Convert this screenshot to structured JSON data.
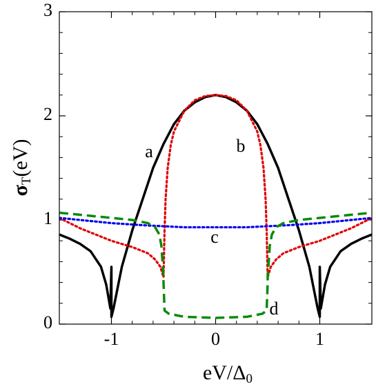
{
  "chart_data": {
    "type": "line",
    "x_label": {
      "text": "eV/Δ",
      "subscript": "0"
    },
    "y_label": {
      "symbol": "σ",
      "subscript": "T",
      "unit": "(eV)"
    },
    "xlim": [
      -1.5,
      1.5
    ],
    "ylim": [
      0,
      3
    ],
    "xticks": [
      -1,
      0,
      1
    ],
    "yticks": [
      0,
      1,
      2,
      3
    ],
    "series": [
      {
        "name": "a",
        "color": "#000000",
        "style": "solid",
        "x": [
          -1.5,
          -1.4,
          -1.3,
          -1.2,
          -1.1,
          -1.05,
          -1.01,
          -1.0,
          -1.0,
          -0.98,
          -0.95,
          -0.9,
          -0.8,
          -0.7,
          -0.6,
          -0.5,
          -0.4,
          -0.3,
          -0.2,
          -0.1,
          0,
          0.1,
          0.2,
          0.3,
          0.4,
          0.5,
          0.6,
          0.7,
          0.8,
          0.9,
          0.95,
          0.98,
          1.0,
          1.0,
          1.01,
          1.05,
          1.1,
          1.2,
          1.3,
          1.4,
          1.5
        ],
        "values": [
          0.86,
          0.82,
          0.77,
          0.7,
          0.55,
          0.38,
          0.15,
          0.55,
          0.07,
          0.15,
          0.3,
          0.55,
          0.9,
          1.2,
          1.5,
          1.73,
          1.92,
          2.05,
          2.13,
          2.18,
          2.2,
          2.18,
          2.13,
          2.05,
          1.92,
          1.73,
          1.5,
          1.2,
          0.9,
          0.55,
          0.3,
          0.15,
          0.07,
          0.55,
          0.15,
          0.38,
          0.55,
          0.7,
          0.77,
          0.82,
          0.86
        ]
      },
      {
        "name": "b",
        "color": "#e00000",
        "style": "dotted",
        "x": [
          -1.5,
          -1.3,
          -1.1,
          -1.0,
          -0.8,
          -0.65,
          -0.58,
          -0.53,
          -0.5,
          -0.49,
          -0.48,
          -0.46,
          -0.43,
          -0.4,
          -0.3,
          -0.2,
          -0.1,
          0,
          0.1,
          0.2,
          0.3,
          0.4,
          0.43,
          0.46,
          0.48,
          0.49,
          0.5,
          0.53,
          0.58,
          0.65,
          0.8,
          1.0,
          1.1,
          1.3,
          1.5
        ],
        "values": [
          1.02,
          0.92,
          0.84,
          0.8,
          0.74,
          0.68,
          0.62,
          0.55,
          0.45,
          0.9,
          1.2,
          1.5,
          1.72,
          1.85,
          2.05,
          2.15,
          2.19,
          2.2,
          2.19,
          2.15,
          2.05,
          1.85,
          1.72,
          1.5,
          1.2,
          0.9,
          0.45,
          0.55,
          0.62,
          0.68,
          0.74,
          0.8,
          0.84,
          0.92,
          1.02
        ]
      },
      {
        "name": "c",
        "color": "#0000ee",
        "style": "dotted",
        "x": [
          -1.5,
          -1.2,
          -1.0,
          -0.7,
          -0.5,
          -0.3,
          0,
          0.3,
          0.5,
          0.7,
          1.0,
          1.2,
          1.5
        ],
        "values": [
          1.02,
          0.99,
          0.97,
          0.95,
          0.94,
          0.93,
          0.93,
          0.93,
          0.94,
          0.95,
          0.97,
          0.99,
          1.02
        ]
      },
      {
        "name": "d",
        "color": "#0a8a0a",
        "style": "dashed",
        "x": [
          -1.5,
          -1.2,
          -1.0,
          -0.8,
          -0.65,
          -0.58,
          -0.54,
          -0.52,
          -0.5,
          -0.5,
          -0.49,
          -0.45,
          -0.4,
          -0.3,
          0,
          0.3,
          0.4,
          0.45,
          0.49,
          0.5,
          0.5,
          0.52,
          0.54,
          0.58,
          0.65,
          0.8,
          1.0,
          1.2,
          1.5
        ],
        "values": [
          1.07,
          1.04,
          1.02,
          1.0,
          0.97,
          0.93,
          0.86,
          0.75,
          0.45,
          0.4,
          0.13,
          0.1,
          0.09,
          0.07,
          0.06,
          0.07,
          0.09,
          0.1,
          0.13,
          0.4,
          0.45,
          0.75,
          0.86,
          0.93,
          0.97,
          1.0,
          1.02,
          1.04,
          1.07
        ]
      }
    ]
  }
}
